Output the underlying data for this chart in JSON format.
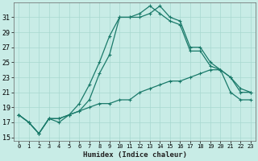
{
  "xlabel": "Humidex (Indice chaleur)",
  "background_color": "#c8ece6",
  "grid_color": "#a8d8d0",
  "line_color": "#1a7a6a",
  "x": [
    0,
    1,
    2,
    3,
    4,
    5,
    6,
    7,
    8,
    9,
    10,
    11,
    12,
    13,
    14,
    15,
    16,
    17,
    18,
    19,
    20,
    21,
    22,
    23
  ],
  "line1": [
    18.0,
    17.0,
    15.5,
    17.5,
    17.0,
    18.0,
    18.5,
    20.0,
    23.5,
    26.0,
    31.0,
    31.0,
    31.0,
    31.5,
    32.5,
    31.0,
    30.5,
    27.0,
    27.0,
    25.0,
    24.0,
    23.0,
    21.0,
    21.0
  ],
  "line2": [
    18.0,
    17.0,
    15.5,
    17.5,
    17.5,
    18.0,
    19.5,
    22.0,
    25.0,
    28.5,
    31.0,
    31.0,
    31.5,
    32.5,
    31.5,
    30.5,
    30.0,
    26.5,
    26.5,
    24.5,
    24.0,
    23.0,
    21.5,
    21.0
  ],
  "line3": [
    18.0,
    17.0,
    15.5,
    17.5,
    17.5,
    18.0,
    18.5,
    19.0,
    19.5,
    19.5,
    20.0,
    20.0,
    21.0,
    21.5,
    22.0,
    22.5,
    22.5,
    23.0,
    23.5,
    24.0,
    24.0,
    21.0,
    20.0,
    20.0
  ],
  "ylim": [
    14.5,
    33.0
  ],
  "yticks": [
    15,
    17,
    19,
    21,
    23,
    25,
    27,
    29,
    31
  ],
  "xlim": [
    -0.5,
    23.5
  ],
  "xticks": [
    0,
    1,
    2,
    3,
    4,
    5,
    6,
    7,
    8,
    9,
    10,
    11,
    12,
    13,
    14,
    15,
    16,
    17,
    18,
    19,
    20,
    21,
    22,
    23
  ]
}
